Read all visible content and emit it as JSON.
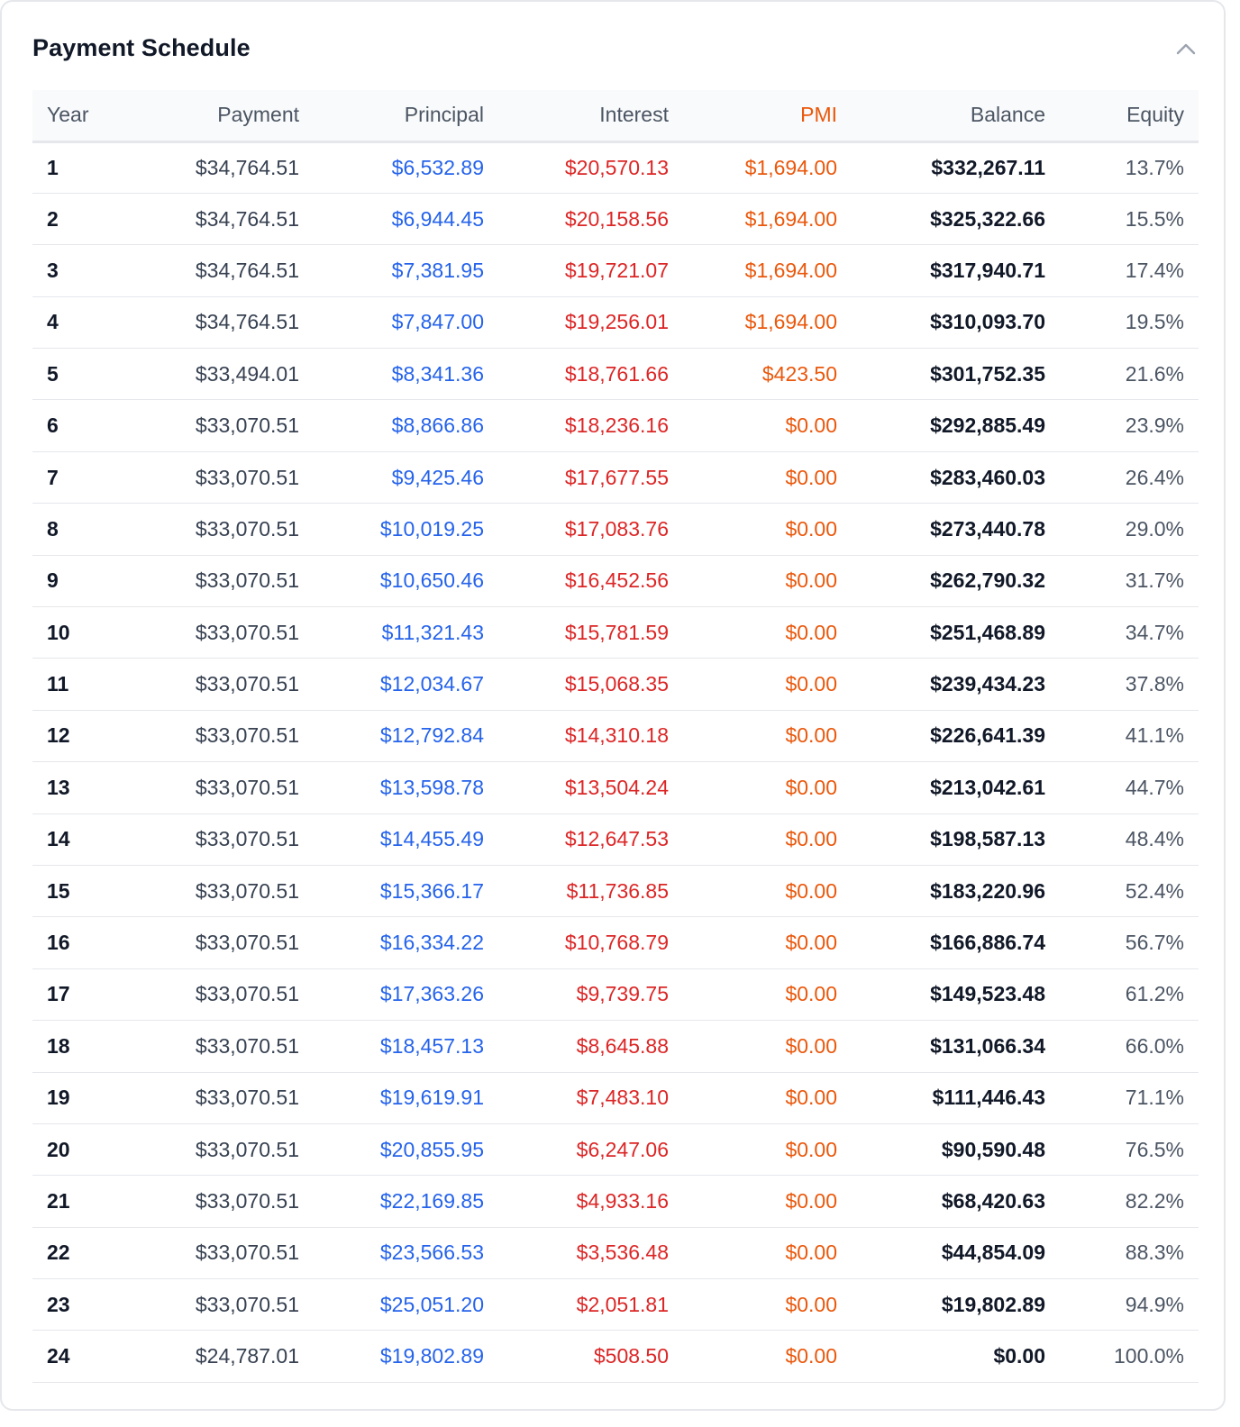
{
  "card": {
    "title": "Payment Schedule",
    "collapse_icon": "chevron-up-icon"
  },
  "colors": {
    "principal": "#2563eb",
    "interest": "#dc2626",
    "pmi": "#ea580c",
    "text": "#111827",
    "muted": "#4b5563"
  },
  "table": {
    "headers": [
      "Year",
      "Payment",
      "Principal",
      "Interest",
      "PMI",
      "Balance",
      "Equity"
    ],
    "rows": [
      [
        "1",
        "$34,764.51",
        "$6,532.89",
        "$20,570.13",
        "$1,694.00",
        "$332,267.11",
        "13.7%"
      ],
      [
        "2",
        "$34,764.51",
        "$6,944.45",
        "$20,158.56",
        "$1,694.00",
        "$325,322.66",
        "15.5%"
      ],
      [
        "3",
        "$34,764.51",
        "$7,381.95",
        "$19,721.07",
        "$1,694.00",
        "$317,940.71",
        "17.4%"
      ],
      [
        "4",
        "$34,764.51",
        "$7,847.00",
        "$19,256.01",
        "$1,694.00",
        "$310,093.70",
        "19.5%"
      ],
      [
        "5",
        "$33,494.01",
        "$8,341.36",
        "$18,761.66",
        "$423.50",
        "$301,752.35",
        "21.6%"
      ],
      [
        "6",
        "$33,070.51",
        "$8,866.86",
        "$18,236.16",
        "$0.00",
        "$292,885.49",
        "23.9%"
      ],
      [
        "7",
        "$33,070.51",
        "$9,425.46",
        "$17,677.55",
        "$0.00",
        "$283,460.03",
        "26.4%"
      ],
      [
        "8",
        "$33,070.51",
        "$10,019.25",
        "$17,083.76",
        "$0.00",
        "$273,440.78",
        "29.0%"
      ],
      [
        "9",
        "$33,070.51",
        "$10,650.46",
        "$16,452.56",
        "$0.00",
        "$262,790.32",
        "31.7%"
      ],
      [
        "10",
        "$33,070.51",
        "$11,321.43",
        "$15,781.59",
        "$0.00",
        "$251,468.89",
        "34.7%"
      ],
      [
        "11",
        "$33,070.51",
        "$12,034.67",
        "$15,068.35",
        "$0.00",
        "$239,434.23",
        "37.8%"
      ],
      [
        "12",
        "$33,070.51",
        "$12,792.84",
        "$14,310.18",
        "$0.00",
        "$226,641.39",
        "41.1%"
      ],
      [
        "13",
        "$33,070.51",
        "$13,598.78",
        "$13,504.24",
        "$0.00",
        "$213,042.61",
        "44.7%"
      ],
      [
        "14",
        "$33,070.51",
        "$14,455.49",
        "$12,647.53",
        "$0.00",
        "$198,587.13",
        "48.4%"
      ],
      [
        "15",
        "$33,070.51",
        "$15,366.17",
        "$11,736.85",
        "$0.00",
        "$183,220.96",
        "52.4%"
      ],
      [
        "16",
        "$33,070.51",
        "$16,334.22",
        "$10,768.79",
        "$0.00",
        "$166,886.74",
        "56.7%"
      ],
      [
        "17",
        "$33,070.51",
        "$17,363.26",
        "$9,739.75",
        "$0.00",
        "$149,523.48",
        "61.2%"
      ],
      [
        "18",
        "$33,070.51",
        "$18,457.13",
        "$8,645.88",
        "$0.00",
        "$131,066.34",
        "66.0%"
      ],
      [
        "19",
        "$33,070.51",
        "$19,619.91",
        "$7,483.10",
        "$0.00",
        "$111,446.43",
        "71.1%"
      ],
      [
        "20",
        "$33,070.51",
        "$20,855.95",
        "$6,247.06",
        "$0.00",
        "$90,590.48",
        "76.5%"
      ],
      [
        "21",
        "$33,070.51",
        "$22,169.85",
        "$4,933.16",
        "$0.00",
        "$68,420.63",
        "82.2%"
      ],
      [
        "22",
        "$33,070.51",
        "$23,566.53",
        "$3,536.48",
        "$0.00",
        "$44,854.09",
        "88.3%"
      ],
      [
        "23",
        "$33,070.51",
        "$25,051.20",
        "$2,051.81",
        "$0.00",
        "$19,802.89",
        "94.9%"
      ],
      [
        "24",
        "$24,787.01",
        "$19,802.89",
        "$508.50",
        "$0.00",
        "$0.00",
        "100.0%"
      ]
    ]
  }
}
